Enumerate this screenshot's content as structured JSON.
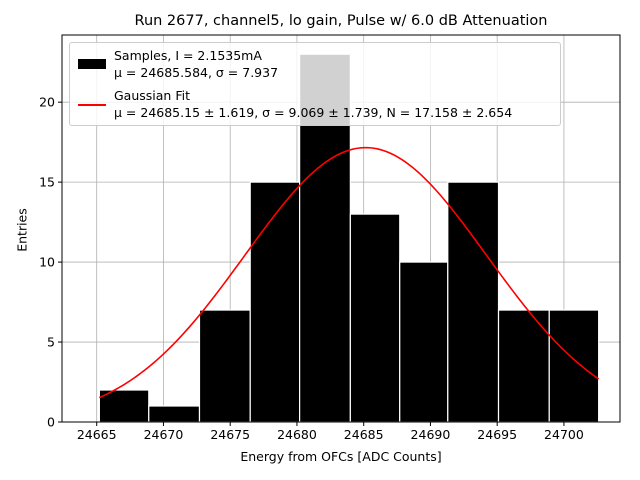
{
  "chart_data": {
    "type": "bar",
    "title": "Run 2677, channel5, lo gain, Pulse w/ 6.0 dB Attenuation",
    "xlabel": "Energy from OFCs [ADC Counts]",
    "ylabel": "Entries",
    "xlim": [
      24662.4,
      24704.2
    ],
    "ylim": [
      0,
      24.2
    ],
    "xticks": [
      "24665",
      "24670",
      "24675",
      "24680",
      "24685",
      "24690",
      "24695",
      "24700"
    ],
    "xtick_values": [
      24665,
      24670,
      24675,
      24680,
      24685,
      24690,
      24695,
      24700
    ],
    "yticks": [
      "0",
      "5",
      "10",
      "15",
      "20"
    ],
    "ytick_values": [
      0,
      5,
      10,
      15,
      20
    ],
    "grid": true,
    "legend_position": "top-left",
    "histogram": {
      "bin_edges": [
        24665.2,
        24668.9,
        24672.7,
        24676.5,
        24680.2,
        24684.0,
        24687.7,
        24691.3,
        24695.1,
        24698.9,
        24702.6
      ],
      "counts": [
        2,
        1,
        7,
        15,
        23,
        13,
        10,
        15,
        7,
        7
      ],
      "fill": "#000000",
      "edge": "#ffffff"
    },
    "fit": {
      "mu": 24685.15,
      "sigma": 9.069,
      "peak": 17.158,
      "x_range": [
        24665.2,
        24702.6
      ],
      "color": "#ff0000"
    },
    "legend": [
      {
        "kind": "box",
        "line1": "Samples, I = 2.1535mA",
        "line2": "μ = 24685.584, σ = 7.937"
      },
      {
        "kind": "line",
        "line1": "Gaussian Fit",
        "line2": "μ = 24685.15 ± 1.619, σ = 9.069 ± 1.739, N = 17.158 ± 2.654"
      }
    ]
  }
}
